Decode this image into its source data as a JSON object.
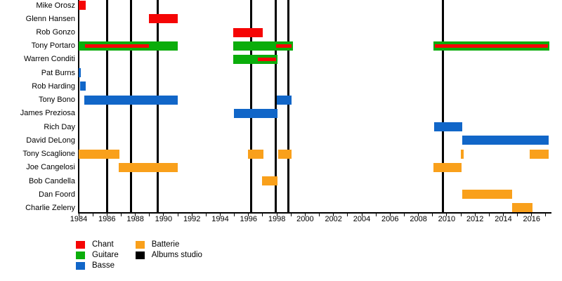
{
  "chart_data": {
    "type": "timeline",
    "x_axis": {
      "min": 1984,
      "max": 2017.4,
      "label_years": [
        1984,
        1986,
        1988,
        1990,
        1992,
        1994,
        1996,
        1998,
        2000,
        2002,
        2004,
        2006,
        2008,
        2010,
        2012,
        2014,
        2016
      ],
      "minor_tick_step": 1
    },
    "roles": {
      "chant": {
        "label": "Chant",
        "color": "#f50505"
      },
      "guitare": {
        "label": "Guitare",
        "color": "#0bad0b"
      },
      "basse": {
        "label": "Basse",
        "color": "#1166c8"
      },
      "batterie": {
        "label": "Batterie",
        "color": "#f9a01b"
      },
      "albums": {
        "label": "Albums studio",
        "color": "#000000"
      }
    },
    "legend_columns": [
      [
        "chant",
        "guitare",
        "basse"
      ],
      [
        "batterie",
        "albums"
      ]
    ],
    "album_years": [
      1986.0,
      1987.7,
      1989.6,
      1996.2,
      1997.9,
      1998.8,
      2009.75
    ],
    "members": [
      {
        "name": "Mike Orosz",
        "bars": [
          {
            "role": "chant",
            "start": 1984.0,
            "end": 1984.5
          }
        ]
      },
      {
        "name": "Glenn Hansen",
        "bars": [
          {
            "role": "chant",
            "start": 1988.95,
            "end": 1991.0
          }
        ]
      },
      {
        "name": "Rob Gonzo",
        "bars": [
          {
            "role": "chant",
            "start": 1994.9,
            "end": 1997.0
          }
        ]
      },
      {
        "name": "Tony Portaro",
        "bars": [
          {
            "role": "guitare",
            "start": 1984.0,
            "end": 1991.0,
            "stripe": {
              "role": "chant",
              "start": 1984.45,
              "end": 1988.95
            }
          },
          {
            "role": "guitare",
            "start": 1994.9,
            "end": 1999.15,
            "stripe": {
              "role": "chant",
              "start": 1997.95,
              "end": 1999.05
            }
          },
          {
            "role": "guitare",
            "start": 2009.05,
            "end": 2017.25,
            "stripe": {
              "role": "chant",
              "start": 2009.15,
              "end": 2017.15
            }
          }
        ]
      },
      {
        "name": "Warren Conditi",
        "bars": [
          {
            "role": "guitare",
            "start": 1994.9,
            "end": 1998.05,
            "stripe": {
              "role": "chant",
              "start": 1996.65,
              "end": 1997.95
            }
          }
        ]
      },
      {
        "name": "Pat Burns",
        "bars": [
          {
            "role": "basse",
            "start": 1984.0,
            "end": 1984.15
          }
        ]
      },
      {
        "name": "Rob Harding",
        "bars": [
          {
            "role": "basse",
            "start": 1984.1,
            "end": 1984.5
          }
        ]
      },
      {
        "name": "Tony Bono",
        "bars": [
          {
            "role": "basse",
            "start": 1984.4,
            "end": 1991.0
          },
          {
            "role": "basse",
            "start": 1998.0,
            "end": 1999.05
          }
        ]
      },
      {
        "name": "James Preziosa",
        "bars": [
          {
            "role": "basse",
            "start": 1994.95,
            "end": 1998.05
          }
        ]
      },
      {
        "name": "Rich Day",
        "bars": [
          {
            "role": "basse",
            "start": 2009.1,
            "end": 2011.1
          }
        ]
      },
      {
        "name": "David DeLong",
        "bars": [
          {
            "role": "basse",
            "start": 2011.1,
            "end": 2017.2
          }
        ]
      },
      {
        "name": "Tony Scaglione",
        "bars": [
          {
            "role": "batterie",
            "start": 1984.0,
            "end": 1986.9
          },
          {
            "role": "batterie",
            "start": 1995.95,
            "end": 1997.05
          },
          {
            "role": "batterie",
            "start": 1998.1,
            "end": 1999.05
          },
          {
            "role": "batterie",
            "start": 2011.0,
            "end": 2011.2
          },
          {
            "role": "batterie",
            "start": 2015.85,
            "end": 2017.2
          }
        ]
      },
      {
        "name": "Joe Cangelosi",
        "bars": [
          {
            "role": "batterie",
            "start": 1986.85,
            "end": 1991.0
          },
          {
            "role": "batterie",
            "start": 2009.05,
            "end": 2011.05
          }
        ]
      },
      {
        "name": "Bob Candella",
        "bars": [
          {
            "role": "batterie",
            "start": 1996.95,
            "end": 1998.05
          }
        ]
      },
      {
        "name": "Dan Foord",
        "bars": [
          {
            "role": "batterie",
            "start": 2011.1,
            "end": 2014.6
          }
        ]
      },
      {
        "name": "Charlie Zeleny",
        "bars": [
          {
            "role": "batterie",
            "start": 2014.6,
            "end": 2016.05
          }
        ]
      }
    ]
  }
}
